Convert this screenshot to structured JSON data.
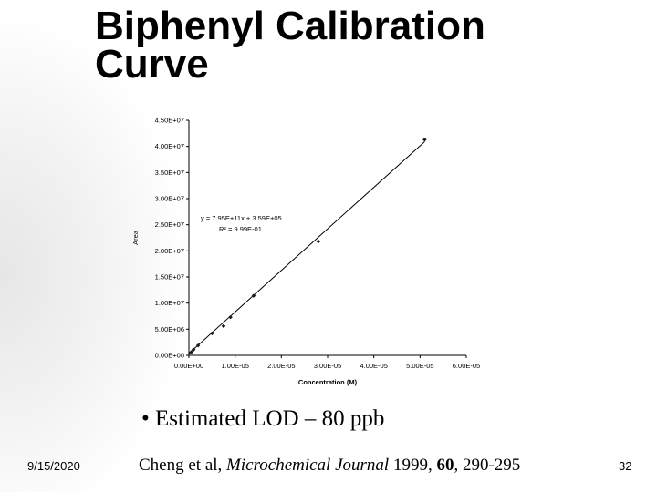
{
  "slide": {
    "title_line1": "Biphenyl Calibration",
    "title_line2": "Curve",
    "bullet": "• Estimated LOD – 80 ppb",
    "footer": {
      "date": "9/15/2020",
      "cite_authors": "Cheng et al",
      "cite_sep": ", ",
      "cite_journal": "Microchemical Journal",
      "cite_year": " 1999, ",
      "cite_volume": "60",
      "cite_pages": ", 290-295",
      "page_number": "32"
    }
  },
  "chart_data": {
    "type": "scatter",
    "xlabel": "Concentration (M)",
    "ylabel": "Area",
    "xlim": [
      0,
      6e-05
    ],
    "ylim": [
      0,
      45000000
    ],
    "x_ticks": [
      "0.00E+00",
      "1.00E-05",
      "2.00E-05",
      "3.00E-05",
      "4.00E-05",
      "5.00E-05",
      "6.00E-05"
    ],
    "y_ticks": [
      "0.00E+00",
      "5.00E+06",
      "1.00E+07",
      "1.50E+07",
      "2.00E+07",
      "2.50E+07",
      "3.00E+07",
      "3.50E+07",
      "4.00E+07",
      "4.50E+07"
    ],
    "grid": false,
    "legend": "none",
    "trendline": {
      "slope": 795000000000,
      "intercept": 359000
    },
    "equation": "y = 7.95E+11x + 3.59E+05",
    "r_squared": "R² = 9.99E-01",
    "points": [
      {
        "x": 5e-07,
        "y": 600000
      },
      {
        "x": 1e-06,
        "y": 1100000
      },
      {
        "x": 2e-06,
        "y": 1900000
      },
      {
        "x": 5e-06,
        "y": 4200000
      },
      {
        "x": 7.5e-06,
        "y": 5600000
      },
      {
        "x": 9e-06,
        "y": 7300000
      },
      {
        "x": 1.4e-05,
        "y": 11400000
      },
      {
        "x": 2.8e-05,
        "y": 21800000
      },
      {
        "x": 5.1e-05,
        "y": 41300000
      }
    ],
    "colors": {
      "marker": "#1a1a1a",
      "line": "#000000"
    }
  }
}
